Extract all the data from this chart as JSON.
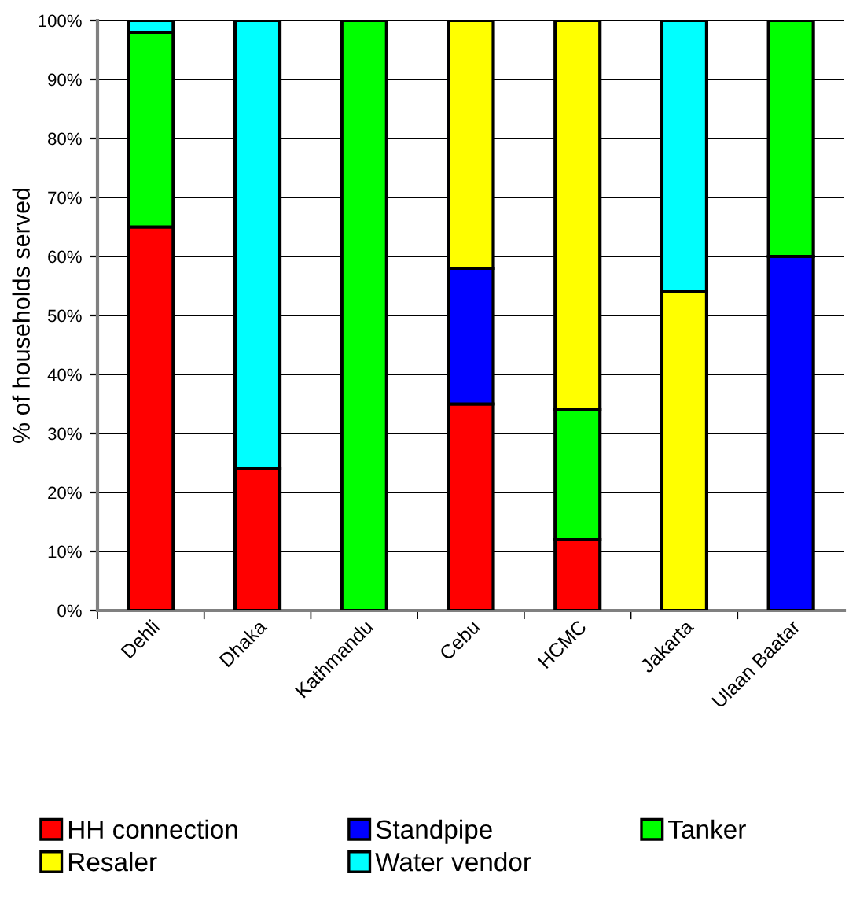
{
  "chart_data": {
    "type": "bar",
    "stacked": true,
    "ylabel": "% of households served",
    "categories": [
      "Dehli",
      "Dhaka",
      "Kathmandu",
      "Cebu",
      "HCMC",
      "Jakarta",
      "Ulaan Baatar"
    ],
    "series": [
      {
        "name": "HH connection",
        "color": "#ff0000",
        "values": [
          65,
          24,
          0,
          35,
          12,
          0,
          0
        ]
      },
      {
        "name": "Standpipe",
        "color": "#0000ff",
        "values": [
          0,
          0,
          0,
          23,
          0,
          0,
          60
        ]
      },
      {
        "name": "Tanker",
        "color": "#00ff00",
        "values": [
          33,
          0,
          100,
          0,
          22,
          0,
          40
        ]
      },
      {
        "name": "Resaler",
        "color": "#ffff00",
        "values": [
          0,
          0,
          0,
          42,
          66,
          54,
          0
        ]
      },
      {
        "name": "Water vendor",
        "color": "#00ffff",
        "values": [
          2,
          76,
          0,
          0,
          0,
          46,
          0
        ]
      }
    ],
    "ylim": [
      0,
      100
    ],
    "yticks": [
      {
        "value": 0,
        "label": "0%"
      },
      {
        "value": 10,
        "label": "10%"
      },
      {
        "value": 20,
        "label": "20%"
      },
      {
        "value": 30,
        "label": "30%"
      },
      {
        "value": 40,
        "label": "40%"
      },
      {
        "value": 50,
        "label": "50%"
      },
      {
        "value": 60,
        "label": "60%"
      },
      {
        "value": 70,
        "label": "70%"
      },
      {
        "value": 80,
        "label": "80%"
      },
      {
        "value": 90,
        "label": "90%"
      },
      {
        "value": 100,
        "label": "100%"
      }
    ],
    "grid": "y",
    "legend": "bottom"
  }
}
